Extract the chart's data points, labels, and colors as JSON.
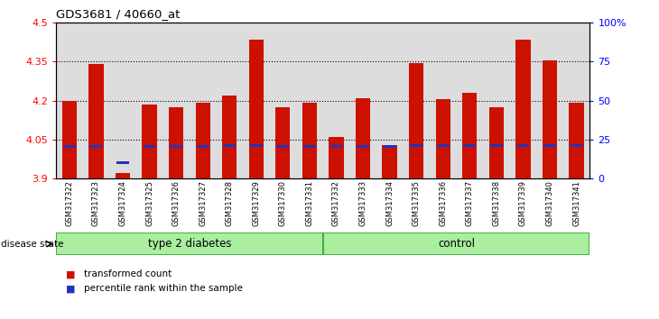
{
  "title": "GDS3681 / 40660_at",
  "samples": [
    "GSM317322",
    "GSM317323",
    "GSM317324",
    "GSM317325",
    "GSM317326",
    "GSM317327",
    "GSM317328",
    "GSM317329",
    "GSM317330",
    "GSM317331",
    "GSM317332",
    "GSM317333",
    "GSM317334",
    "GSM317335",
    "GSM317336",
    "GSM317337",
    "GSM317338",
    "GSM317339",
    "GSM317340",
    "GSM317341"
  ],
  "bar_values": [
    4.2,
    4.34,
    3.92,
    4.185,
    4.175,
    4.19,
    4.22,
    4.435,
    4.175,
    4.19,
    4.06,
    4.21,
    4.03,
    4.345,
    4.205,
    4.23,
    4.175,
    4.435,
    4.355,
    4.19
  ],
  "percentile_values": [
    4.023,
    4.023,
    3.962,
    4.023,
    4.023,
    4.023,
    4.028,
    4.028,
    4.023,
    4.023,
    4.023,
    4.023,
    4.023,
    4.028,
    4.028,
    4.028,
    4.028,
    4.028,
    4.028,
    4.028
  ],
  "ylim": [
    3.9,
    4.5
  ],
  "yticks": [
    3.9,
    4.05,
    4.2,
    4.35,
    4.5
  ],
  "ytick_labels": [
    "3.9",
    "4.05",
    "4.2",
    "4.35",
    "4.5"
  ],
  "right_yticks": [
    0,
    25,
    50,
    75,
    100
  ],
  "right_ytick_labels": [
    "0",
    "25",
    "50",
    "75",
    "100%"
  ],
  "dotted_lines": [
    4.05,
    4.2,
    4.35
  ],
  "bar_color": "#CC1100",
  "percentile_color": "#2233BB",
  "group1_label": "type 2 diabetes",
  "group2_label": "control",
  "group1_count": 10,
  "group2_count": 10,
  "group_bg_color": "#AAEEA0",
  "group_border_color": "#33AA33",
  "disease_state_label": "disease state",
  "legend_bar_label": "transformed count",
  "legend_pct_label": "percentile rank within the sample",
  "bar_width": 0.55,
  "axis_bg_color": "#DDDDDD",
  "plot_bg_color": "#FFFFFF"
}
